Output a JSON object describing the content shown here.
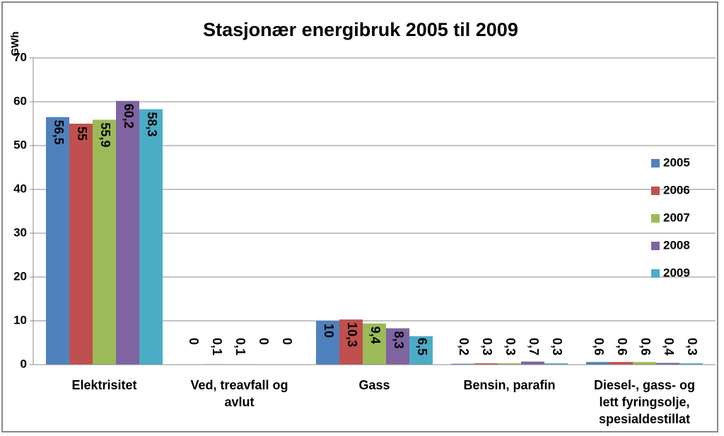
{
  "chart_data": {
    "type": "bar",
    "title": "Stasjonær energibruk 2005 til 2009",
    "y_label": "GWh",
    "categories": [
      [
        "Elektrisitet"
      ],
      [
        "Ved, treavfall og",
        "avlut"
      ],
      [
        "Gass"
      ],
      [
        "Bensin, parafin"
      ],
      [
        "Diesel-, gass- og",
        "lett fyringsolje,",
        "spesialdestillat"
      ]
    ],
    "series": [
      {
        "name": "2005",
        "color": "#4f81bd",
        "values": [
          56.5,
          0,
          10,
          0.2,
          0.6
        ],
        "value_labels": [
          "56,5",
          "0",
          "10",
          "0,2",
          "0,6"
        ]
      },
      {
        "name": "2006",
        "color": "#c0504d",
        "values": [
          55,
          0.1,
          10.3,
          0.3,
          0.6
        ],
        "value_labels": [
          "55",
          "0,1",
          "10,3",
          "0,3",
          "0,6"
        ]
      },
      {
        "name": "2007",
        "color": "#9bbb59",
        "values": [
          55.9,
          0.1,
          9.4,
          0.3,
          0.6
        ],
        "value_labels": [
          "55,9",
          "0,1",
          "9,4",
          "0,3",
          "0,6"
        ]
      },
      {
        "name": "2008",
        "color": "#8064a2",
        "values": [
          60.2,
          0,
          8.3,
          0.7,
          0.4
        ],
        "value_labels": [
          "60,2",
          "0",
          "8,3",
          "0,7",
          "0,4"
        ]
      },
      {
        "name": "2009",
        "color": "#4bacc6",
        "values": [
          58.3,
          0,
          6.5,
          0.3,
          0.3
        ],
        "value_labels": [
          "58,3",
          "0",
          "6,5",
          "0,3",
          "0,3"
        ]
      }
    ],
    "ylim": [
      0,
      70
    ],
    "yticks": [
      0,
      10,
      20,
      30,
      40,
      50,
      60,
      70
    ],
    "grid": true,
    "legend": "right"
  }
}
